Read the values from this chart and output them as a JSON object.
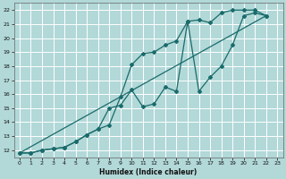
{
  "xlabel": "Humidex (Indice chaleur)",
  "bg_color": "#b2d8d8",
  "grid_color": "#ffffff",
  "line_color": "#1a6b6b",
  "xlim_min": -0.5,
  "xlim_max": 23.5,
  "ylim_min": 11.5,
  "ylim_max": 22.5,
  "xticks": [
    0,
    1,
    2,
    3,
    4,
    5,
    6,
    7,
    8,
    9,
    10,
    11,
    12,
    13,
    14,
    15,
    16,
    17,
    18,
    19,
    20,
    21,
    22,
    23
  ],
  "yticks": [
    12,
    13,
    14,
    15,
    16,
    17,
    18,
    19,
    20,
    21,
    22
  ],
  "curve1_x": [
    0,
    1,
    2,
    3,
    4,
    5,
    6,
    7,
    8,
    9,
    10,
    11,
    12,
    13,
    14,
    15,
    16,
    17,
    18,
    19,
    20,
    21,
    22
  ],
  "curve1_y": [
    11.8,
    11.8,
    12.0,
    12.1,
    12.2,
    12.6,
    13.1,
    13.5,
    15.0,
    15.2,
    16.3,
    15.1,
    15.3,
    16.5,
    16.2,
    21.2,
    21.3,
    21.1,
    21.8,
    22.0,
    22.0,
    22.0,
    21.6
  ],
  "curve2_x": [
    0,
    1,
    2,
    3,
    4,
    5,
    6,
    7,
    8,
    9,
    10,
    11,
    12,
    13,
    14,
    15,
    16,
    17,
    18,
    19,
    20,
    21,
    22
  ],
  "curve2_y": [
    11.8,
    11.8,
    12.0,
    12.1,
    12.2,
    12.6,
    13.1,
    13.5,
    13.8,
    15.8,
    18.1,
    18.9,
    19.0,
    19.5,
    19.8,
    21.2,
    16.2,
    17.2,
    18.0,
    19.5,
    21.6,
    21.8,
    21.6
  ],
  "line_x": [
    0,
    22
  ],
  "line_y": [
    11.8,
    21.6
  ]
}
